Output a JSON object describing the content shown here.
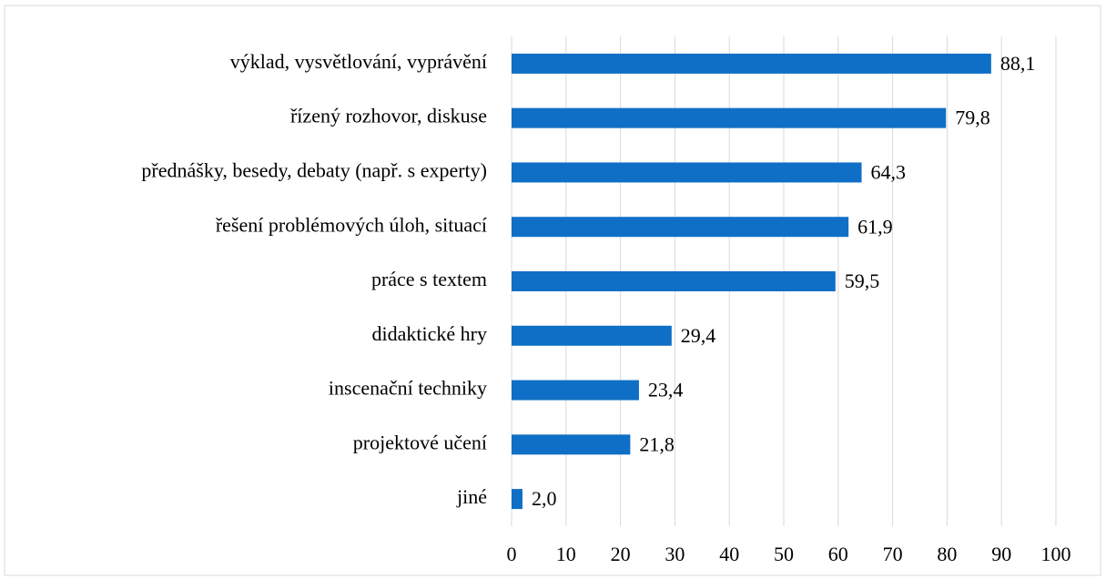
{
  "chart_data": {
    "type": "barh",
    "categories": [
      "výklad, vysvětlování, vyprávění",
      "řízený rozhovor, diskuse",
      "přednášky, besedy, debaty (např. s experty)",
      "řešení problémových úloh, situací",
      "práce s textem",
      "didaktické hry",
      "inscenační techniky",
      "projektové učení",
      "jiné"
    ],
    "values": [
      88.1,
      79.8,
      64.3,
      61.9,
      59.5,
      29.4,
      23.4,
      21.8,
      2.0
    ],
    "value_labels": [
      "88,1",
      "79,8",
      "64,3",
      "61,9",
      "59,5",
      "29,4",
      "23,4",
      "21,8",
      "2,0"
    ],
    "color": "#0f6fc6",
    "xlim": [
      0,
      100
    ],
    "xticks": [
      0,
      10,
      20,
      30,
      40,
      50,
      60,
      70,
      80,
      90,
      100
    ],
    "grid": true
  }
}
